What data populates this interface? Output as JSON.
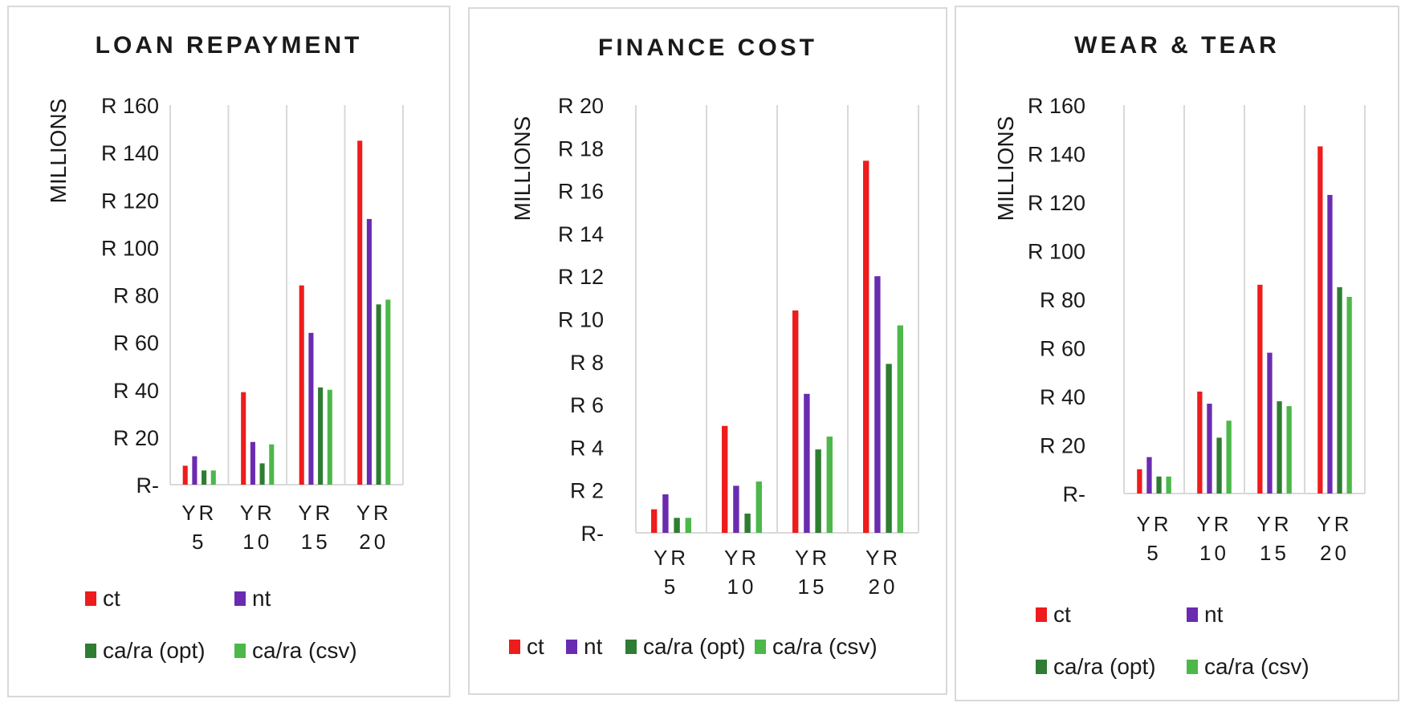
{
  "series_colors": {
    "ct": "#ee1c1c",
    "nt": "#6a2bb0",
    "ca/ra (opt)": "#2e7d32",
    "ca/ra (csv)": "#4cb849"
  },
  "axis_prefix": "R",
  "zero_label": "R-",
  "chart_data": [
    {
      "type": "bar",
      "title": "LOAN REPAYMENT",
      "ylabel": "MILLIONS",
      "xlabel": "",
      "ylim": [
        0,
        160
      ],
      "ytick_step": 20,
      "y_tick_labels": [
        "R-",
        "R 20",
        "R 40",
        "R 60",
        "R 80",
        "R 100",
        "R 120",
        "R 140",
        "R 160"
      ],
      "categories": [
        [
          "YR",
          "5"
        ],
        [
          "YR",
          "10"
        ],
        [
          "YR",
          "15"
        ],
        [
          "YR",
          "20"
        ]
      ],
      "legend_position": "bottom",
      "legend_items": [
        "ct",
        "nt",
        "ca/ra (opt)",
        "ca/ra (csv)"
      ],
      "series": [
        {
          "name": "ct",
          "values": [
            8,
            39,
            84,
            145
          ]
        },
        {
          "name": "nt",
          "values": [
            12,
            18,
            64,
            112
          ]
        },
        {
          "name": "ca/ra (opt)",
          "values": [
            6,
            9,
            41,
            76
          ]
        },
        {
          "name": "ca/ra (csv)",
          "values": [
            6,
            17,
            40,
            78
          ]
        }
      ]
    },
    {
      "type": "bar",
      "title": "FINANCE COST",
      "ylabel": "MILLIONS",
      "xlabel": "",
      "ylim": [
        0,
        20
      ],
      "ytick_step": 2,
      "y_tick_labels": [
        "R-",
        "R 2",
        "R 4",
        "R 6",
        "R 8",
        "R 10",
        "R 12",
        "R 14",
        "R 16",
        "R 18",
        "R 20"
      ],
      "categories": [
        [
          "YR",
          "5"
        ],
        [
          "YR",
          "10"
        ],
        [
          "YR",
          "15"
        ],
        [
          "YR",
          "20"
        ]
      ],
      "legend_position": "bottom",
      "legend_items": [
        "ct",
        "nt",
        "ca/ra (opt)",
        "ca/ra (csv)"
      ],
      "series": [
        {
          "name": "ct",
          "values": [
            1.1,
            5.0,
            10.4,
            17.4
          ]
        },
        {
          "name": "nt",
          "values": [
            1.8,
            2.2,
            6.5,
            12.0
          ]
        },
        {
          "name": "ca/ra (opt)",
          "values": [
            0.7,
            0.9,
            3.9,
            7.9
          ]
        },
        {
          "name": "ca/ra (csv)",
          "values": [
            0.7,
            2.4,
            4.5,
            9.7
          ]
        }
      ]
    },
    {
      "type": "bar",
      "title": "WEAR & TEAR",
      "ylabel": "MILLIONS",
      "xlabel": "",
      "ylim": [
        0,
        160
      ],
      "ytick_step": 20,
      "y_tick_labels": [
        "R-",
        "R 20",
        "R 40",
        "R 60",
        "R 80",
        "R 100",
        "R 120",
        "R 140",
        "R 160"
      ],
      "categories": [
        [
          "YR",
          "5"
        ],
        [
          "YR",
          "10"
        ],
        [
          "YR",
          "15"
        ],
        [
          "YR",
          "20"
        ]
      ],
      "legend_position": "bottom",
      "legend_items": [
        "ct",
        "nt",
        "ca/ra (opt)",
        "ca/ra (csv)"
      ],
      "series": [
        {
          "name": "ct",
          "values": [
            10,
            42,
            86,
            143
          ]
        },
        {
          "name": "nt",
          "values": [
            15,
            37,
            58,
            123
          ]
        },
        {
          "name": "ca/ra (opt)",
          "values": [
            7,
            23,
            38,
            85
          ]
        },
        {
          "name": "ca/ra (csv)",
          "values": [
            7,
            30,
            36,
            81
          ]
        }
      ]
    }
  ]
}
